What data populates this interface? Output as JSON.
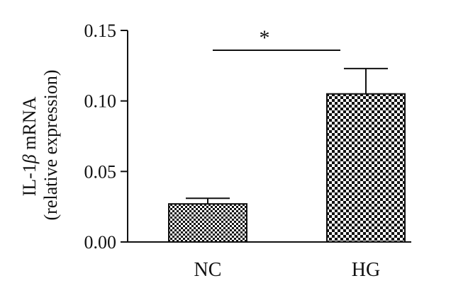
{
  "chart_data": {
    "type": "bar",
    "categories": [
      "NC",
      "HG"
    ],
    "values": [
      0.027,
      0.105
    ],
    "error_upper": [
      0.031,
      0.123
    ],
    "ylabel_line1_prefix": "IL-1",
    "ylabel_line1_greek": "β",
    "ylabel_line1_suffix": " mRNA",
    "ylabel_line2": "(relative expression)",
    "ylim": [
      0,
      0.15
    ],
    "yticks": [
      "0.00",
      "0.05",
      "0.10",
      "0.15"
    ],
    "ytick_values": [
      0,
      0.05,
      0.1,
      0.15
    ],
    "significance": {
      "label": "*",
      "between": [
        "NC",
        "HG"
      ]
    },
    "grid": false,
    "fill_patterns": [
      "fine-checker",
      "coarse-checker"
    ],
    "colors": {
      "ink": "#111111",
      "paper": "#ffffff"
    }
  }
}
